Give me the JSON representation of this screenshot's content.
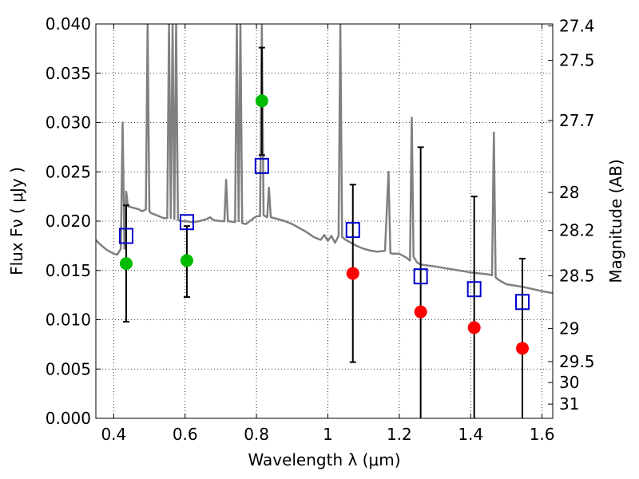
{
  "chart_data": {
    "type": "scatter",
    "title": "",
    "xlabel": "Wavelength  λ (μm)",
    "ylabel": "Flux  Fν  ( μJy )",
    "ylabel_right": "Magnitude (AB)",
    "xlim": [
      0.35,
      1.63
    ],
    "ylim": [
      0.0,
      0.04
    ],
    "grid": true,
    "x_ticks": [
      0.4,
      0.6,
      0.8,
      1.0,
      1.2,
      1.4,
      1.6
    ],
    "x_tick_labels": [
      "0.4",
      "0.6",
      "0.8",
      "1",
      "1.2",
      "1.4",
      "1.6"
    ],
    "y_ticks": [
      0.0,
      0.005,
      0.01,
      0.015,
      0.02,
      0.025,
      0.03,
      0.035,
      0.04
    ],
    "y_tick_labels": [
      "0.000",
      "0.005",
      "0.010",
      "0.015",
      "0.020",
      "0.025",
      "0.030",
      "0.035",
      "0.040"
    ],
    "right_ticks": [
      {
        "mag": 27.4,
        "label": "27.4"
      },
      {
        "mag": 27.5,
        "label": "27.5"
      },
      {
        "mag": 27.7,
        "label": "27.7"
      },
      {
        "mag": 28.0,
        "label": "28"
      },
      {
        "mag": 28.2,
        "label": "28.2"
      },
      {
        "mag": 28.5,
        "label": "28.5"
      },
      {
        "mag": 29.0,
        "label": "29"
      },
      {
        "mag": 29.5,
        "label": "29.5"
      },
      {
        "mag": 30.0,
        "label": "30"
      },
      {
        "mag": 31.0,
        "label": "31"
      }
    ],
    "colors": {
      "spectrum": "#808080",
      "detections": "#00bb00",
      "upper_limits": "#ff0000",
      "model_boxes": "#0000cc",
      "errorbars": "#000000"
    },
    "series": [
      {
        "kind": "spectrum",
        "x": [
          0.35,
          0.36,
          0.38,
          0.4,
          0.41,
          0.42,
          0.425,
          0.43,
          0.435,
          0.44,
          0.45,
          0.46,
          0.47,
          0.48,
          0.49,
          0.495,
          0.5,
          0.505,
          0.52,
          0.54,
          0.55,
          0.555,
          0.56,
          0.565,
          0.57,
          0.575,
          0.58,
          0.59,
          0.6,
          0.62,
          0.64,
          0.66,
          0.67,
          0.68,
          0.7,
          0.71,
          0.715,
          0.72,
          0.74,
          0.745,
          0.75,
          0.755,
          0.76,
          0.77,
          0.8,
          0.81,
          0.815,
          0.82,
          0.83,
          0.835,
          0.84,
          0.86,
          0.88,
          0.9,
          0.92,
          0.94,
          0.96,
          0.98,
          0.99,
          1.0,
          1.01,
          1.02,
          1.03,
          1.035,
          1.04,
          1.05,
          1.06,
          1.08,
          1.1,
          1.12,
          1.14,
          1.16,
          1.17,
          1.175,
          1.18,
          1.2,
          1.22,
          1.23,
          1.235,
          1.24,
          1.25,
          1.26,
          1.28,
          1.3,
          1.35,
          1.4,
          1.45,
          1.46,
          1.465,
          1.47,
          1.48,
          1.5,
          1.55,
          1.6,
          1.63
        ],
        "y": [
          0.0181,
          0.0177,
          0.0171,
          0.0167,
          0.0166,
          0.0172,
          0.03,
          0.0172,
          0.023,
          0.0215,
          0.0214,
          0.0213,
          0.0212,
          0.021,
          0.0212,
          0.04,
          0.021,
          0.0208,
          0.0206,
          0.0203,
          0.0203,
          0.04,
          0.0203,
          0.04,
          0.0202,
          0.04,
          0.0201,
          0.02,
          0.02,
          0.0199,
          0.02,
          0.0202,
          0.0204,
          0.0201,
          0.02,
          0.02,
          0.0242,
          0.02,
          0.0199,
          0.04,
          0.02,
          0.04,
          0.0198,
          0.0197,
          0.0205,
          0.0205,
          0.04,
          0.0206,
          0.0204,
          0.0234,
          0.0204,
          0.0202,
          0.02,
          0.0197,
          0.0193,
          0.0189,
          0.0184,
          0.0181,
          0.0186,
          0.018,
          0.0185,
          0.0178,
          0.0185,
          0.04,
          0.0184,
          0.0181,
          0.0179,
          0.0175,
          0.0172,
          0.017,
          0.0169,
          0.017,
          0.025,
          0.0168,
          0.0167,
          0.0167,
          0.0163,
          0.016,
          0.0305,
          0.0164,
          0.0158,
          0.0156,
          0.0155,
          0.0154,
          0.0151,
          0.0148,
          0.0146,
          0.0145,
          0.029,
          0.0143,
          0.014,
          0.0136,
          0.0133,
          0.0129,
          0.0127
        ]
      },
      {
        "kind": "detections",
        "x": [
          0.435,
          0.605,
          0.815
        ],
        "y": [
          0.0157,
          0.016,
          0.0322
        ]
      },
      {
        "kind": "upper_limits",
        "x": [
          1.07,
          1.26,
          1.41,
          1.545
        ],
        "y": [
          0.0147,
          0.0108,
          0.0092,
          0.0071
        ]
      },
      {
        "kind": "model_boxes",
        "x": [
          0.435,
          0.605,
          0.815,
          1.07,
          1.26,
          1.41,
          1.545
        ],
        "y": [
          0.0185,
          0.0199,
          0.0256,
          0.0191,
          0.0144,
          0.0131,
          0.0118
        ]
      },
      {
        "kind": "errorbars",
        "x": [
          0.435,
          0.605,
          0.815,
          1.07,
          1.26,
          1.41,
          1.545
        ],
        "low": [
          0.0098,
          0.0123,
          0.0267,
          0.0057,
          0.0,
          0.0,
          0.0
        ],
        "high": [
          0.0216,
          0.0195,
          0.0376,
          0.0237,
          0.0275,
          0.0225,
          0.0162
        ]
      }
    ]
  }
}
